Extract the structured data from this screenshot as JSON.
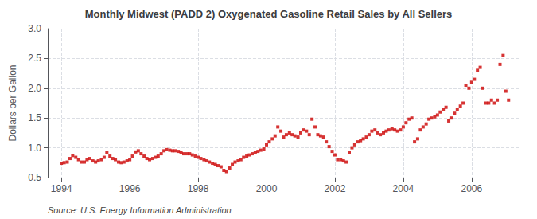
{
  "chart_data": {
    "type": "scatter",
    "title": "Monthly Midwest (PADD 2) Oxygenated Gasoline Retail Sales by All Sellers",
    "ylabel": "Dollars per Gallon",
    "annotations": [
      "Source: U.S. Energy Information Administration"
    ],
    "color": "#cc0000",
    "marker": "square",
    "grid": true,
    "xlim": [
      1993.6,
      2007.4
    ],
    "xticks": [
      1994,
      1996,
      1998,
      2000,
      2002,
      2004,
      2006
    ],
    "ylim": [
      0.5,
      3.0
    ],
    "yticks": [
      0.5,
      {
        "value": 1.0,
        "label": "1.0"
      },
      1.5,
      {
        "value": 2.0,
        "label": "2.0"
      },
      2.5,
      {
        "value": 3.0,
        "label": "3.0"
      }
    ],
    "x": [
      1994.0,
      1994.08,
      1994.17,
      1994.25,
      1994.33,
      1994.42,
      1994.5,
      1994.58,
      1994.67,
      1994.75,
      1994.83,
      1994.92,
      1995.0,
      1995.08,
      1995.17,
      1995.25,
      1995.33,
      1995.42,
      1995.5,
      1995.58,
      1995.67,
      1995.75,
      1995.83,
      1995.92,
      1996.0,
      1996.08,
      1996.17,
      1996.25,
      1996.33,
      1996.42,
      1996.5,
      1996.58,
      1996.67,
      1996.75,
      1996.83,
      1996.92,
      1997.0,
      1997.08,
      1997.17,
      1997.25,
      1997.33,
      1997.42,
      1997.5,
      1997.58,
      1997.67,
      1997.75,
      1997.83,
      1997.92,
      1998.0,
      1998.08,
      1998.17,
      1998.25,
      1998.33,
      1998.42,
      1998.5,
      1998.58,
      1998.67,
      1998.75,
      1998.83,
      1998.92,
      1999.0,
      1999.08,
      1999.17,
      1999.25,
      1999.33,
      1999.42,
      1999.5,
      1999.58,
      1999.67,
      1999.75,
      1999.83,
      1999.92,
      2000.0,
      2000.08,
      2000.17,
      2000.25,
      2000.33,
      2000.42,
      2000.5,
      2000.58,
      2000.67,
      2000.75,
      2000.83,
      2000.92,
      2001.0,
      2001.08,
      2001.17,
      2001.25,
      2001.33,
      2001.42,
      2001.5,
      2001.58,
      2001.67,
      2001.75,
      2001.83,
      2001.92,
      2002.0,
      2002.08,
      2002.17,
      2002.25,
      2002.33,
      2002.42,
      2002.5,
      2002.58,
      2002.67,
      2002.75,
      2002.83,
      2002.92,
      2003.0,
      2003.08,
      2003.17,
      2003.25,
      2003.33,
      2003.42,
      2003.5,
      2003.58,
      2003.67,
      2003.75,
      2003.83,
      2003.92,
      2004.0,
      2004.08,
      2004.17,
      2004.25,
      2004.33,
      2004.42,
      2004.5,
      2004.58,
      2004.67,
      2004.75,
      2004.83,
      2004.92,
      2005.0,
      2005.08,
      2005.17,
      2005.25,
      2005.33,
      2005.42,
      2005.5,
      2005.58,
      2005.67,
      2005.75,
      2005.83,
      2005.92,
      2006.0,
      2006.08,
      2006.17,
      2006.25,
      2006.33,
      2006.42,
      2006.5,
      2006.58,
      2006.67,
      2006.75,
      2006.83,
      2006.92,
      2007.0,
      2007.08
    ],
    "values": [
      0.74,
      0.75,
      0.76,
      0.82,
      0.87,
      0.84,
      0.8,
      0.76,
      0.76,
      0.8,
      0.82,
      0.78,
      0.76,
      0.78,
      0.8,
      0.84,
      0.92,
      0.86,
      0.82,
      0.8,
      0.76,
      0.75,
      0.76,
      0.78,
      0.8,
      0.86,
      0.93,
      0.95,
      0.9,
      0.86,
      0.82,
      0.8,
      0.82,
      0.84,
      0.86,
      0.9,
      0.95,
      0.97,
      0.96,
      0.95,
      0.95,
      0.94,
      0.92,
      0.9,
      0.9,
      0.9,
      0.88,
      0.86,
      0.84,
      0.82,
      0.8,
      0.78,
      0.76,
      0.74,
      0.72,
      0.7,
      0.68,
      0.62,
      0.6,
      0.66,
      0.72,
      0.76,
      0.78,
      0.8,
      0.84,
      0.86,
      0.88,
      0.9,
      0.92,
      0.94,
      0.96,
      0.98,
      1.05,
      1.1,
      1.15,
      1.2,
      1.35,
      1.28,
      1.18,
      1.22,
      1.25,
      1.22,
      1.2,
      1.18,
      1.25,
      1.3,
      1.28,
      1.22,
      1.48,
      1.35,
      1.22,
      1.2,
      1.18,
      1.1,
      1.02,
      0.94,
      0.88,
      0.8,
      0.8,
      0.78,
      0.76,
      0.92,
      1.0,
      1.05,
      1.1,
      1.12,
      1.15,
      1.18,
      1.22,
      1.28,
      1.3,
      1.25,
      1.22,
      1.25,
      1.28,
      1.3,
      1.32,
      1.3,
      1.28,
      1.3,
      1.35,
      1.42,
      1.48,
      1.5,
      1.1,
      1.15,
      1.3,
      1.35,
      1.4,
      1.48,
      1.5,
      1.52,
      1.55,
      1.6,
      1.65,
      1.68,
      1.45,
      1.5,
      1.58,
      1.65,
      1.7,
      1.75,
      2.05,
      2.0,
      2.1,
      2.15,
      2.3,
      2.35,
      2.0,
      1.75,
      1.75,
      1.8,
      1.75,
      1.8,
      2.4,
      2.55,
      1.95,
      1.8
    ]
  }
}
